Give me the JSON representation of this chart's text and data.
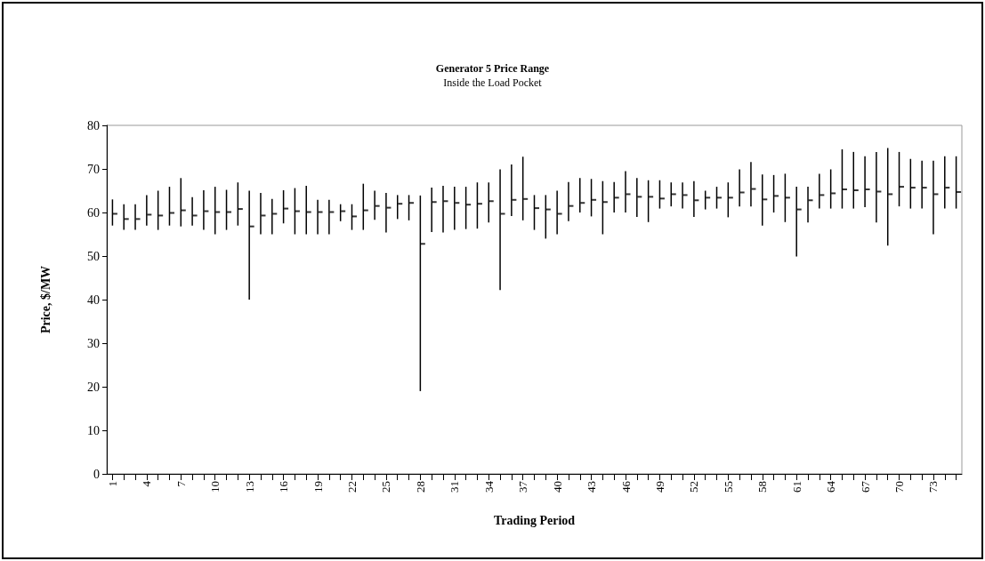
{
  "chart_data": {
    "type": "bar",
    "title": "Generator 5 Price Range",
    "subtitle": "Inside the Load Pocket",
    "xlabel": "Trading Period",
    "ylabel": "Price, $/MW",
    "categories": [
      "1",
      null,
      null,
      "4",
      null,
      null,
      "7",
      null,
      null,
      "10",
      null,
      null,
      "13",
      null,
      null,
      "16",
      null,
      null,
      "19",
      null,
      null,
      "22",
      null,
      null,
      "25",
      null,
      null,
      "28",
      null,
      null,
      "31",
      null,
      null,
      "34",
      null,
      null,
      "37",
      null,
      null,
      "40",
      null,
      null,
      "43",
      null,
      null,
      "46",
      null,
      null,
      "49",
      null,
      null,
      "52",
      null,
      null,
      "55",
      null,
      null,
      "58",
      null,
      null,
      "61",
      null,
      null,
      "64",
      null,
      null,
      "67",
      null,
      null,
      "70",
      null,
      null,
      "73",
      null,
      null
    ],
    "series": [
      {
        "type": "bar",
        "color": "#000000",
        "base": [
          57.0,
          56.0,
          56.0,
          57.0,
          56.0,
          57.0,
          56.8,
          57.0,
          56.0,
          55.0,
          56.0,
          57.0,
          40.0,
          55.0,
          55.0,
          57.5,
          55.0,
          55.0,
          55.0,
          55.0,
          58.0,
          56.0,
          56.0,
          58.3,
          55.4,
          58.5,
          58.2,
          19.0,
          55.5,
          55.4,
          56.0,
          56.2,
          56.3,
          57.7,
          42.2,
          59.2,
          58.2,
          56.0,
          54.0,
          55.0,
          58.0,
          60.0,
          59.1,
          55.0,
          60.0,
          60.0,
          59.0,
          57.8,
          60.9,
          61.4,
          60.9,
          59.0,
          60.7,
          60.9,
          58.9,
          61.4,
          61.4,
          57.0,
          60.0,
          57.8,
          49.9,
          57.7,
          60.9,
          60.9,
          60.9,
          60.9,
          61.2,
          57.7,
          52.4,
          61.4,
          60.9,
          60.9,
          55.0,
          60.9,
          60.9
        ],
        "values": [
          6.0,
          5.9,
          5.9,
          7.0,
          9.0,
          8.9,
          11.1,
          6.5,
          9.1,
          10.9,
          9.2,
          9.9,
          25.0,
          9.5,
          8.1,
          7.6,
          10.6,
          11.1,
          7.9,
          7.9,
          3.9,
          5.9,
          10.6,
          6.7,
          9.1,
          5.5,
          5.8,
          44.9,
          10.2,
          10.7,
          9.9,
          9.7,
          10.6,
          9.2,
          27.7,
          11.8,
          14.6,
          8.0,
          10.0,
          10.0,
          9.0,
          7.9,
          8.6,
          12.2,
          7.0,
          9.5,
          8.9,
          9.6,
          6.5,
          5.5,
          6.0,
          8.2,
          4.3,
          5.0,
          8.0,
          8.5,
          10.2,
          11.7,
          8.6,
          11.1,
          16.0,
          8.2,
          8.0,
          9.0,
          13.6,
          13.0,
          11.7,
          16.2,
          22.4,
          12.5,
          11.4,
          11.0,
          16.9,
          12.0,
          12.0
        ]
      },
      {
        "type": "scatter",
        "color": "#000000",
        "values": [
          59.7,
          58.5,
          58.5,
          59.5,
          59.3,
          59.9,
          60.5,
          59.3,
          60.3,
          60.1,
          60.1,
          60.8,
          56.8,
          59.3,
          59.7,
          60.9,
          60.3,
          60.1,
          60.1,
          60.1,
          60.3,
          59.1,
          60.5,
          61.5,
          61.1,
          62.0,
          62.2,
          52.8,
          62.4,
          62.6,
          62.2,
          61.8,
          62.0,
          62.6,
          59.7,
          62.9,
          63.1,
          61.0,
          60.7,
          59.7,
          61.5,
          62.2,
          62.9,
          62.4,
          63.4,
          64.2,
          63.6,
          63.6,
          63.2,
          64.2,
          64.0,
          62.8,
          63.4,
          63.4,
          63.4,
          64.6,
          65.4,
          63.0,
          63.8,
          63.4,
          60.7,
          62.8,
          64.0,
          64.4,
          65.3,
          65.1,
          65.3,
          64.8,
          64.2,
          65.9,
          65.7,
          65.7,
          64.2,
          65.7,
          64.7
        ]
      }
    ],
    "ylim": [
      0,
      80
    ],
    "yticks": [
      0,
      10,
      20,
      30,
      40,
      50,
      60,
      70,
      80
    ],
    "grid": false
  }
}
